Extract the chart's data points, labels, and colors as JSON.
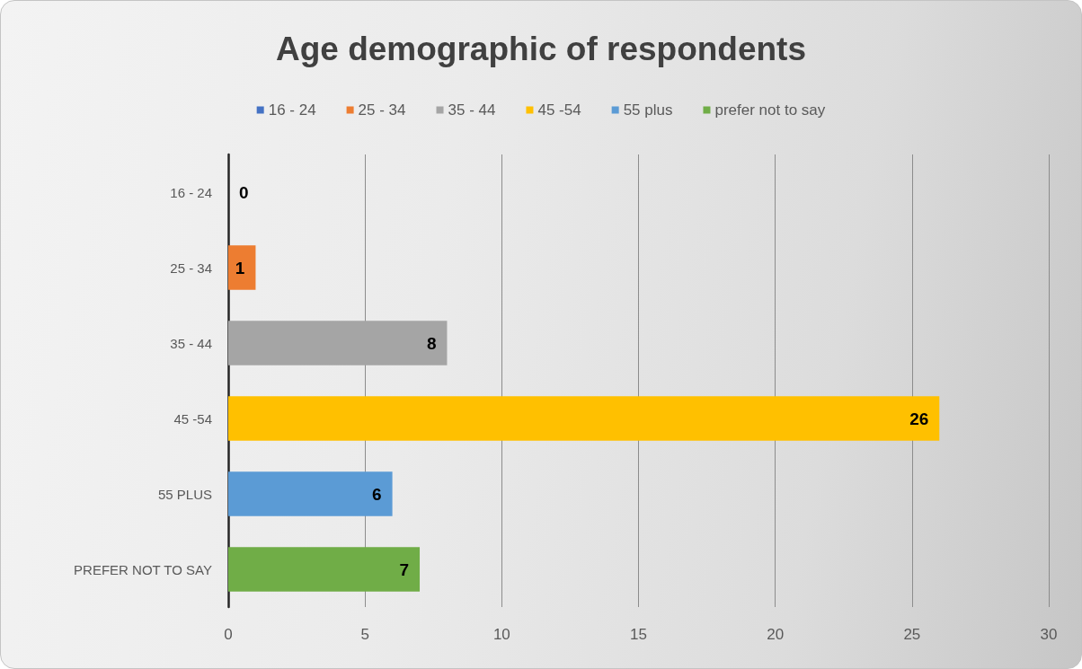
{
  "chart_data": {
    "type": "bar",
    "orientation": "horizontal",
    "title": "Age demographic of respondents",
    "categories": [
      "16 - 24",
      "25 - 34",
      "35 - 44",
      "45 -54",
      "55 PLUS",
      "PREFER NOT TO SAY"
    ],
    "series": [
      {
        "name": "16 - 24",
        "color": "#4472c4",
        "values": [
          0,
          null,
          null,
          null,
          null,
          null
        ]
      },
      {
        "name": "25 - 34",
        "color": "#ed7d31",
        "values": [
          null,
          1,
          null,
          null,
          null,
          null
        ]
      },
      {
        "name": "35 - 44",
        "color": "#a5a5a5",
        "values": [
          null,
          null,
          8,
          null,
          null,
          null
        ]
      },
      {
        "name": "45 -54",
        "color": "#ffc000",
        "values": [
          null,
          null,
          null,
          26,
          null,
          null
        ]
      },
      {
        "name": "55 plus",
        "color": "#5b9bd5",
        "values": [
          null,
          null,
          null,
          null,
          6,
          null
        ]
      },
      {
        "name": "prefer not to say",
        "color": "#70ad47",
        "values": [
          null,
          null,
          null,
          null,
          null,
          7
        ]
      }
    ],
    "xlim": [
      0,
      30
    ],
    "xticks": [
      0,
      5,
      10,
      15,
      20,
      25,
      30
    ],
    "grid": "x",
    "legend": "top",
    "data_labels": true
  }
}
